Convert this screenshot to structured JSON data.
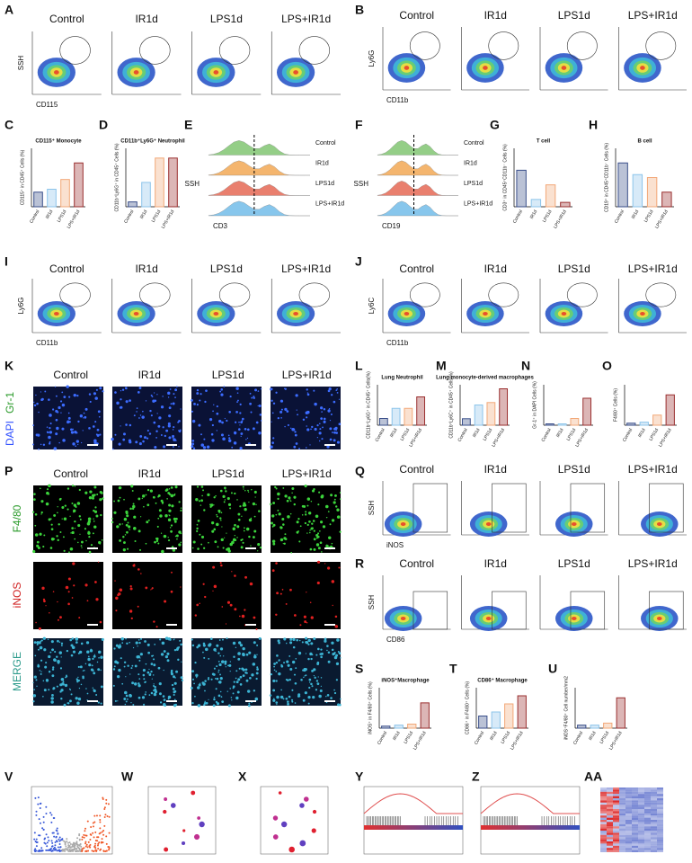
{
  "letters": [
    "A",
    "B",
    "C",
    "D",
    "E",
    "F",
    "G",
    "H",
    "I",
    "J",
    "K",
    "L",
    "M",
    "N",
    "O",
    "P",
    "Q",
    "R",
    "S",
    "T",
    "U",
    "V",
    "W",
    "X",
    "Y",
    "Z",
    "AA"
  ],
  "groups": [
    "Control",
    "IR1d",
    "LPS1d",
    "LPS+IR1d"
  ],
  "group_colors": [
    "#3a4f8a",
    "#8cc4ea",
    "#f2a878",
    "#9a2f2f"
  ],
  "hist_colors": [
    "#7ac36a",
    "#f2a34a",
    "#e4604a",
    "#6ab8e8"
  ],
  "flow_panels": [
    {
      "y_label": "SSH",
      "x_label": "CD115"
    },
    {
      "y_label": "Ly6G",
      "x_label": "CD11b"
    },
    {
      "y_label": "Ly6G",
      "x_label": "CD11b"
    },
    {
      "y_label": "Ly6C",
      "x_label": "CD11b"
    },
    {
      "y_label": "SSH",
      "x_label": "iNOS"
    },
    {
      "y_label": "SSH",
      "x_label": "CD86"
    }
  ],
  "hist_panels": [
    {
      "y_label": "SSH",
      "x_label": "CD3"
    },
    {
      "y_label": "SSH",
      "x_label": "CD19"
    }
  ],
  "image_panels": [
    {
      "stains": [
        "DAPI",
        "Gr-1"
      ]
    },
    {
      "stains": [
        "F4/80",
        "iNOS",
        "MERGE"
      ]
    }
  ],
  "bar_panels": [
    {
      "title": "CD115⁺ Monocyte",
      "y_label": "CD115⁺ in CD45⁺ Cells (%)",
      "values": [
        15,
        18,
        28,
        45
      ],
      "ylim": [
        0,
        60
      ]
    },
    {
      "title": "CD11b⁺Ly6G⁺ Neutrophil",
      "y_label": "CD11b⁺Ly6G⁺ in CD45⁺ Cells (%)",
      "values": [
        5,
        25,
        50,
        50
      ],
      "ylim": [
        0,
        60
      ]
    },
    {
      "title": "T cell",
      "y_label": "CD3⁺ in CD45⁺CD11b⁻ Cells (%)",
      "values": [
        25,
        5,
        15,
        3
      ],
      "ylim": [
        0,
        40
      ]
    },
    {
      "title": "B cell",
      "y_label": "CD19⁺ in CD45⁺CD11b⁻ Cells (%)",
      "values": [
        30,
        22,
        20,
        10
      ],
      "ylim": [
        0,
        40
      ]
    },
    {
      "title": "Lung Neutrophil",
      "y_label": "CD11b⁺Ly6G⁺ in CD45⁺ Cells(%)",
      "values": [
        10,
        25,
        25,
        42
      ],
      "ylim": [
        0,
        60
      ]
    },
    {
      "title": "Lung monocyte-derived macrophages",
      "y_label": "CD11b⁺Ly6C⁺ in CD45⁺ Cells(%)",
      "values": [
        8,
        25,
        28,
        45
      ],
      "ylim": [
        0,
        50
      ]
    },
    {
      "y_label": "Gr-1⁺ in DAPI Cells (%)",
      "values": [
        1,
        1,
        5,
        20
      ],
      "ylim": [
        0,
        30
      ]
    },
    {
      "y_label": "F4/80⁺ Cells (%)",
      "values": [
        2,
        3,
        10,
        30
      ],
      "ylim": [
        0,
        40
      ]
    },
    {
      "title": "iNOS⁺Macrophage",
      "y_label": "iNOS⁺ in F4/80⁺ Cells (%)",
      "values": [
        2,
        3,
        4,
        25
      ],
      "ylim": [
        0,
        40
      ]
    },
    {
      "title": "CD86⁺ Macrophage",
      "y_label": "CD86⁺ in F4/80⁺ Cells (%)",
      "values": [
        15,
        20,
        30,
        40
      ],
      "ylim": [
        0,
        50
      ]
    },
    {
      "y_label": "iNOS⁺F4/80⁺ Cell number/mm2",
      "values": [
        3,
        3,
        5,
        30
      ],
      "ylim": [
        0,
        40
      ]
    }
  ]
}
